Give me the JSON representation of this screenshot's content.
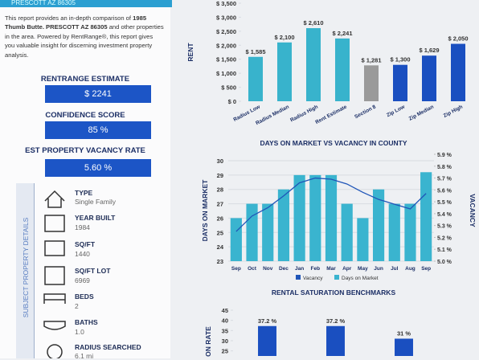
{
  "report": {
    "banner": "PRESCOTT AZ 86305",
    "intro": {
      "before": "This report provides an in-depth comparison of",
      "address": "1985 Thumb Butte. PRESCOTT AZ 86305",
      "after": "and other properties in the area. Powered by RentRange®, this report gives you valuable insight for discerning investment property analysis."
    },
    "metrics": [
      {
        "label": "RENTRANGE ESTIMATE",
        "value": "$ 2241"
      },
      {
        "label": "CONFIDENCE SCORE",
        "value": "85 %"
      },
      {
        "label": "EST PROPERTY VACANCY RATE",
        "value": "5.60 %"
      }
    ],
    "details_title": "SUBJECT PROPERTY DETAILS",
    "details": [
      {
        "label": "TYPE",
        "value": "Single Family"
      },
      {
        "label": "YEAR BUILT",
        "value": "1984"
      },
      {
        "label": "SQ/FT",
        "value": "1440"
      },
      {
        "label": "SQ/FT LOT",
        "value": "6969"
      },
      {
        "label": "BEDS",
        "value": "2"
      },
      {
        "label": "BATHS",
        "value": "1.0"
      },
      {
        "label": "RADIUS SEARCHED",
        "value": "6.1 mi"
      }
    ]
  },
  "chart_data": [
    {
      "type": "bar",
      "y_label": "RENT",
      "categories": [
        "Radius Low",
        "Radius Median",
        "Radius High",
        "Rent Estimate",
        "Section 8",
        "Zip Low",
        "Zip Median",
        "Zip High"
      ],
      "values": [
        1585,
        2100,
        2610,
        2241,
        1281,
        1300,
        1629,
        2050
      ],
      "value_labels": [
        "$ 1,585",
        "$ 2,100",
        "$ 2,610",
        "$ 2,241",
        "$ 1,281",
        "$ 1,300",
        "$ 1,629",
        "$ 2,050"
      ],
      "colors": [
        "#38b3cc",
        "#38b3cc",
        "#38b3cc",
        "#38b3cc",
        "#9a9a9a",
        "#1a4fc0",
        "#1a4fc0",
        "#1a4fc0"
      ],
      "ylim": [
        0,
        3500
      ],
      "yticks": [
        {
          "value": 0,
          "label": "$ 0"
        },
        {
          "value": 500,
          "label": "$ 500"
        },
        {
          "value": 1000,
          "label": "$ 1,000"
        },
        {
          "value": 1500,
          "label": "$ 1,500"
        },
        {
          "value": 2000,
          "label": "$ 2,000"
        },
        {
          "value": 2500,
          "label": "$ 2,500"
        },
        {
          "value": 3000,
          "label": "$ 3,000"
        },
        {
          "value": 3500,
          "label": "$ 3,500"
        }
      ],
      "grid": false
    },
    {
      "type": "combo",
      "title": "DAYS ON MARKET VS VACANCY IN COUNTY",
      "y_label": "DAYS ON MARKET",
      "y2_label": "VACANCY",
      "categories": [
        "Sep",
        "Oct",
        "Nov",
        "Dec",
        "Jan",
        "Feb",
        "Mar",
        "Apr",
        "May",
        "Jun",
        "Jul",
        "Aug",
        "Sep"
      ],
      "series": [
        {
          "name": "Vacancy",
          "color": "#1f55b8",
          "axis": "y2",
          "values": [
            5.25,
            5.38,
            5.45,
            5.55,
            5.66,
            5.7,
            5.69,
            5.65,
            5.58,
            5.52,
            5.48,
            5.44,
            5.57
          ]
        },
        {
          "name": "Days on Market",
          "color": "#3ab4cf",
          "values": [
            26,
            27,
            27,
            28,
            29,
            29,
            29,
            27,
            26,
            28,
            27,
            27,
            29.2
          ]
        }
      ],
      "ylim": [
        23,
        30
      ],
      "yticks": [
        23,
        24,
        25,
        26,
        27,
        28,
        29,
        30
      ],
      "y2lim": [
        5.0,
        5.9
      ],
      "y2ticks": [
        {
          "value": 5.0,
          "label": "5.0 %"
        },
        {
          "value": 5.1,
          "label": "5.1 %"
        },
        {
          "value": 5.2,
          "label": "5.2 %"
        },
        {
          "value": 5.3,
          "label": "5.3 %"
        },
        {
          "value": 5.4,
          "label": "5.4 %"
        },
        {
          "value": 5.5,
          "label": "5.5 %"
        },
        {
          "value": 5.6,
          "label": "5.6 %"
        },
        {
          "value": 5.7,
          "label": "5.7 %"
        },
        {
          "value": 5.8,
          "label": "5.8 %"
        },
        {
          "value": 5.9,
          "label": "5.9 %"
        }
      ],
      "grid": true
    },
    {
      "type": "bar",
      "title": "RENTAL SATURATION BENCHMARKS",
      "y_label": "ON RATE",
      "categories": [
        null,
        null,
        null
      ],
      "values": [
        37.2,
        37.2,
        31
      ],
      "value_labels": [
        "37.2 %",
        "37.2 %",
        "31 %"
      ],
      "colors": [
        "#1a4fc0",
        "#1a4fc0",
        "#1a4fc0"
      ],
      "ylim": [
        22.5,
        45
      ],
      "yticks": [
        25,
        30,
        35,
        40,
        45
      ],
      "grid": false
    }
  ]
}
